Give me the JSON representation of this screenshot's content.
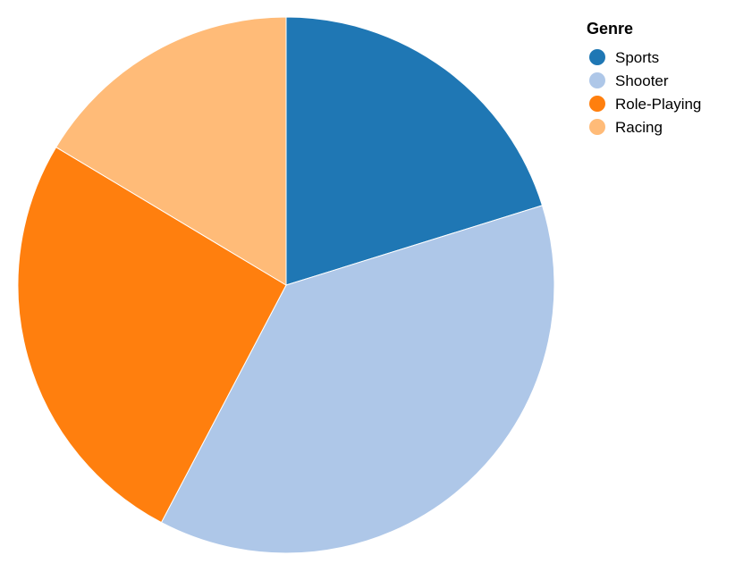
{
  "chart_data": {
    "type": "pie",
    "categories": [
      "Sports",
      "Shooter",
      "Role-Playing",
      "Racing"
    ],
    "values": [
      20.2,
      37.5,
      25.9,
      16.4
    ],
    "colors": [
      "#1f77b4",
      "#aec7e8",
      "#ff7f0e",
      "#ffbb78"
    ],
    "start_angle_deg": 0,
    "direction": "clockwise",
    "legend": {
      "title": "Genre",
      "position": "top-right",
      "symbol": "circle"
    }
  }
}
